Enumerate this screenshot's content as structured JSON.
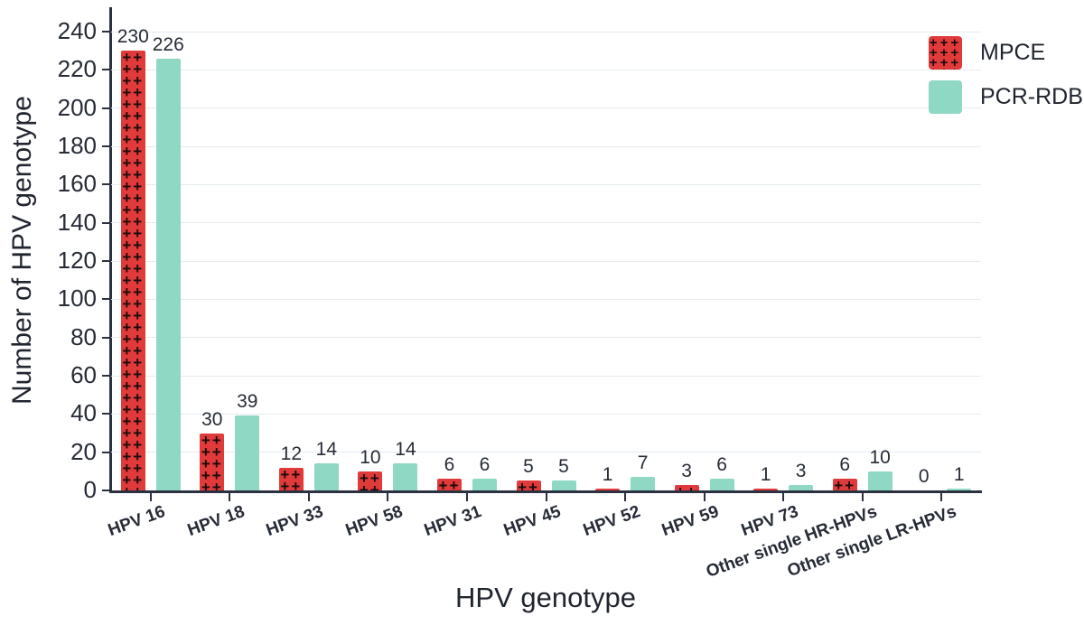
{
  "chart_data": {
    "type": "bar",
    "title": "",
    "xlabel": "HPV genotype",
    "ylabel": "Number of HPV genotype",
    "categories": [
      "HPV 16",
      "HPV 18",
      "HPV 33",
      "HPV 58",
      "HPV 31",
      "HPV 45",
      "HPV 52",
      "HPV 59",
      "HPV 73",
      "Other single HR-HPVs",
      "Other single LR-HPVs"
    ],
    "series": [
      {
        "name": "MPCE",
        "color": "#e13a3a",
        "pattern": "black-cross-hatch",
        "values": [
          230,
          30,
          12,
          10,
          6,
          5,
          1,
          3,
          1,
          6,
          0
        ]
      },
      {
        "name": "PCR-RDB",
        "color": "#8ed8c4",
        "pattern": "solid",
        "values": [
          226,
          39,
          14,
          14,
          6,
          5,
          7,
          6,
          3,
          10,
          1
        ]
      }
    ],
    "ylim": [
      0,
      240
    ],
    "ytick_step": 20,
    "grid": true,
    "legend_position": "top-right",
    "bar_labels": true
  },
  "colors": {
    "mpce_fill": "#e13a3a",
    "mpce_cross": "#190b0b",
    "pcr_rdb_fill": "#8ed8c4",
    "axis": "#2b3140",
    "text": "#262b36",
    "gridline": "#e4eaef",
    "background": "#ffffff"
  }
}
